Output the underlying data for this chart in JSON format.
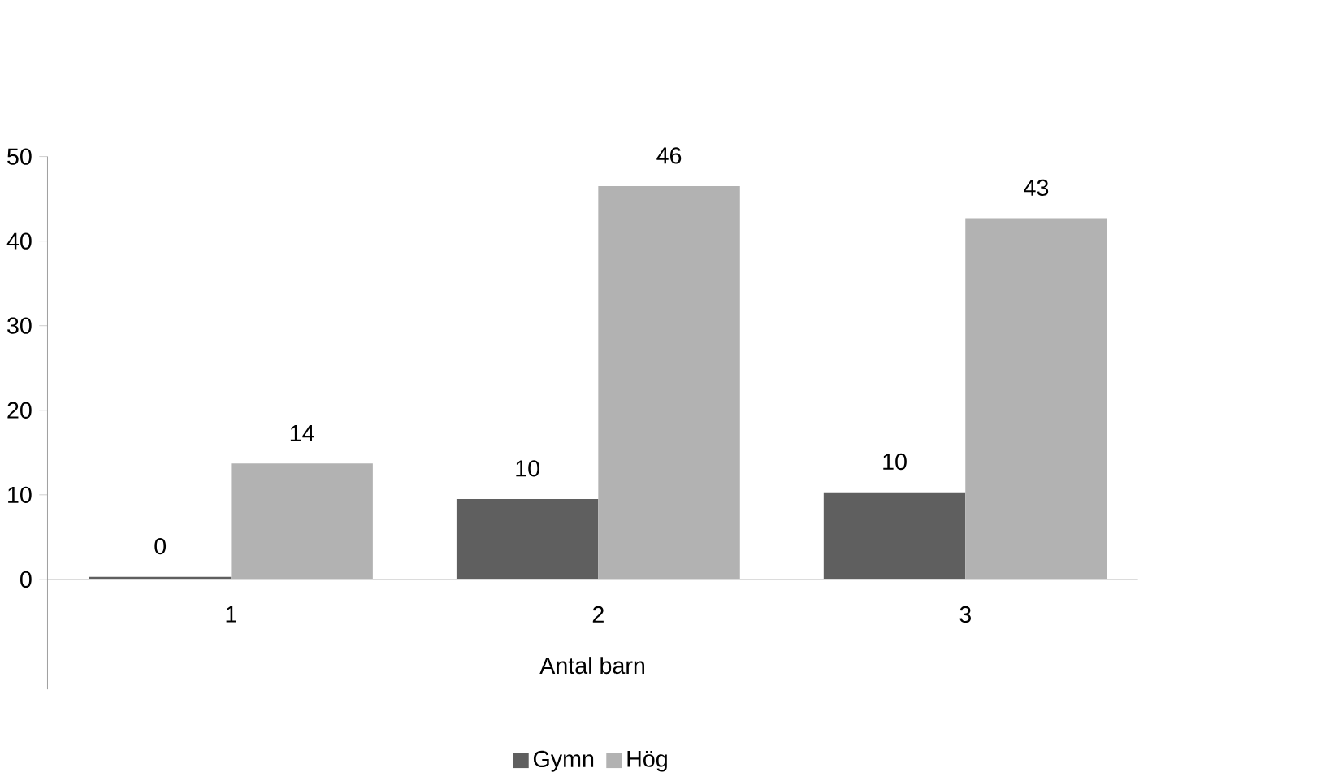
{
  "chart_data": {
    "type": "bar",
    "xlabel": "Antal barn",
    "categories": [
      "1",
      "2",
      "3"
    ],
    "series": [
      {
        "name": "Gymn",
        "color": "#5f5f5f",
        "values": [
          0.3,
          9.5,
          10.3
        ],
        "value_labels": [
          "0",
          "10",
          "10"
        ]
      },
      {
        "name": "Hög",
        "color": "#b2b2b2",
        "values": [
          13.7,
          46.5,
          42.7
        ],
        "value_labels": [
          "14",
          "46",
          "43"
        ]
      }
    ],
    "ylim": [
      -13,
      50
    ],
    "yticks": [
      0,
      10,
      20,
      30,
      40,
      50
    ],
    "legend": "bottom"
  }
}
